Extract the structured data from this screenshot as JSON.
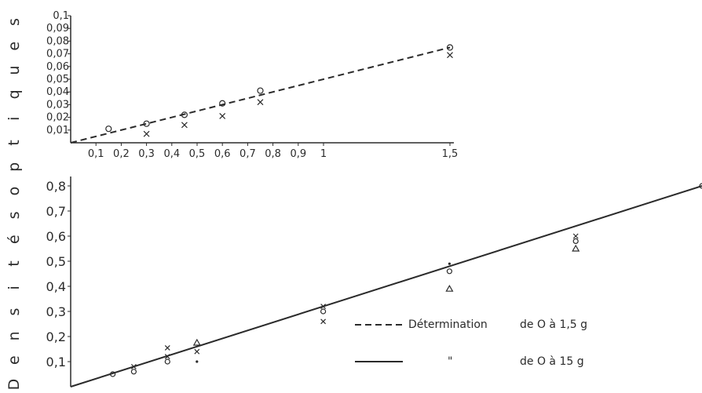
{
  "chart_data": [
    {
      "type": "line",
      "title": "",
      "xlabel": "",
      "ylabel": "Densités optiques",
      "xlim": [
        0,
        1.5
      ],
      "ylim": [
        0,
        0.1
      ],
      "x_ticks": [
        "0,1",
        "0,2",
        "0,3",
        "0,4",
        "0,5",
        "0,6",
        "0,7",
        "0,8",
        "0,9",
        "1",
        "1,5"
      ],
      "y_ticks": [
        "0,01",
        "0,02",
        "0,03",
        "0,04",
        "0,05",
        "0,06",
        "0,07",
        "0,08",
        "0,09",
        "0,1"
      ],
      "series": [
        {
          "style": "dashed",
          "x": [
            0,
            1.5
          ],
          "y": [
            0,
            0.075
          ],
          "points": [
            {
              "x": 0.15,
              "y": 0.011,
              "marker": "o"
            },
            {
              "x": 0.3,
              "y": 0.015,
              "marker": "o"
            },
            {
              "x": 0.3,
              "y": 0.007,
              "marker": "x"
            },
            {
              "x": 0.45,
              "y": 0.022,
              "marker": "o"
            },
            {
              "x": 0.45,
              "y": 0.014,
              "marker": "x"
            },
            {
              "x": 0.6,
              "y": 0.031,
              "marker": "o"
            },
            {
              "x": 0.6,
              "y": 0.021,
              "marker": "x"
            },
            {
              "x": 0.75,
              "y": 0.041,
              "marker": "o"
            },
            {
              "x": 0.75,
              "y": 0.032,
              "marker": "x"
            },
            {
              "x": 1.5,
              "y": 0.075,
              "marker": "o"
            },
            {
              "x": 1.5,
              "y": 0.069,
              "marker": "x"
            }
          ]
        }
      ]
    },
    {
      "type": "line",
      "title": "",
      "xlabel": "",
      "ylabel": "Densités optiques",
      "xlim": [
        0,
        15
      ],
      "ylim": [
        0,
        0.8
      ],
      "y_ticks": [
        "0,1",
        "0,2",
        "0,3",
        "0,4",
        "0,5",
        "0,6",
        "0,7",
        "0,8"
      ],
      "series": [
        {
          "style": "solid",
          "x": [
            0,
            15
          ],
          "y": [
            0,
            0.8
          ],
          "points": [
            {
              "x": 1,
              "y": 0.05,
              "marker": "o"
            },
            {
              "x": 1.5,
              "y": 0.08,
              "marker": "x"
            },
            {
              "x": 1.5,
              "y": 0.06,
              "marker": "o"
            },
            {
              "x": 2.3,
              "y": 0.155,
              "marker": "x"
            },
            {
              "x": 2.3,
              "y": 0.12,
              "marker": "x"
            },
            {
              "x": 2.3,
              "y": 0.1,
              "marker": "o"
            },
            {
              "x": 3,
              "y": 0.175,
              "marker": "triangle"
            },
            {
              "x": 3,
              "y": 0.14,
              "marker": "x"
            },
            {
              "x": 3,
              "y": 0.1,
              "marker": "dot"
            },
            {
              "x": 6,
              "y": 0.32,
              "marker": "x"
            },
            {
              "x": 6,
              "y": 0.3,
              "marker": "o"
            },
            {
              "x": 6,
              "y": 0.26,
              "marker": "x"
            },
            {
              "x": 9,
              "y": 0.49,
              "marker": "dot"
            },
            {
              "x": 9,
              "y": 0.46,
              "marker": "o"
            },
            {
              "x": 9,
              "y": 0.39,
              "marker": "triangle"
            },
            {
              "x": 12,
              "y": 0.6,
              "marker": "x"
            },
            {
              "x": 12,
              "y": 0.58,
              "marker": "o"
            },
            {
              "x": 12,
              "y": 0.55,
              "marker": "triangle"
            },
            {
              "x": 15,
              "y": 0.8,
              "marker": "o"
            }
          ]
        }
      ]
    }
  ],
  "ylabel": "Densités optiques",
  "top": {
    "x_ticks": [
      "0,1",
      "0,2",
      "0,3",
      "0,4",
      "0,5",
      "0,6",
      "0,7",
      "0,8",
      "0,9",
      "1",
      "1,5"
    ],
    "y_ticks": [
      "0,01",
      "0,02",
      "0,03",
      "0,04",
      "0,05",
      "0,06",
      "0,07",
      "0,08",
      "0,09",
      "0,1"
    ]
  },
  "bottom": {
    "y_ticks": [
      "0,1",
      "0,2",
      "0,3",
      "0,4",
      "0,5",
      "0,6",
      "0,7",
      "0,8"
    ]
  },
  "legend": {
    "dashed_text": "Détermination",
    "dashed_range": "de O à 1,5 g",
    "solid_text": "\"",
    "solid_range": "de O à 15 g"
  }
}
